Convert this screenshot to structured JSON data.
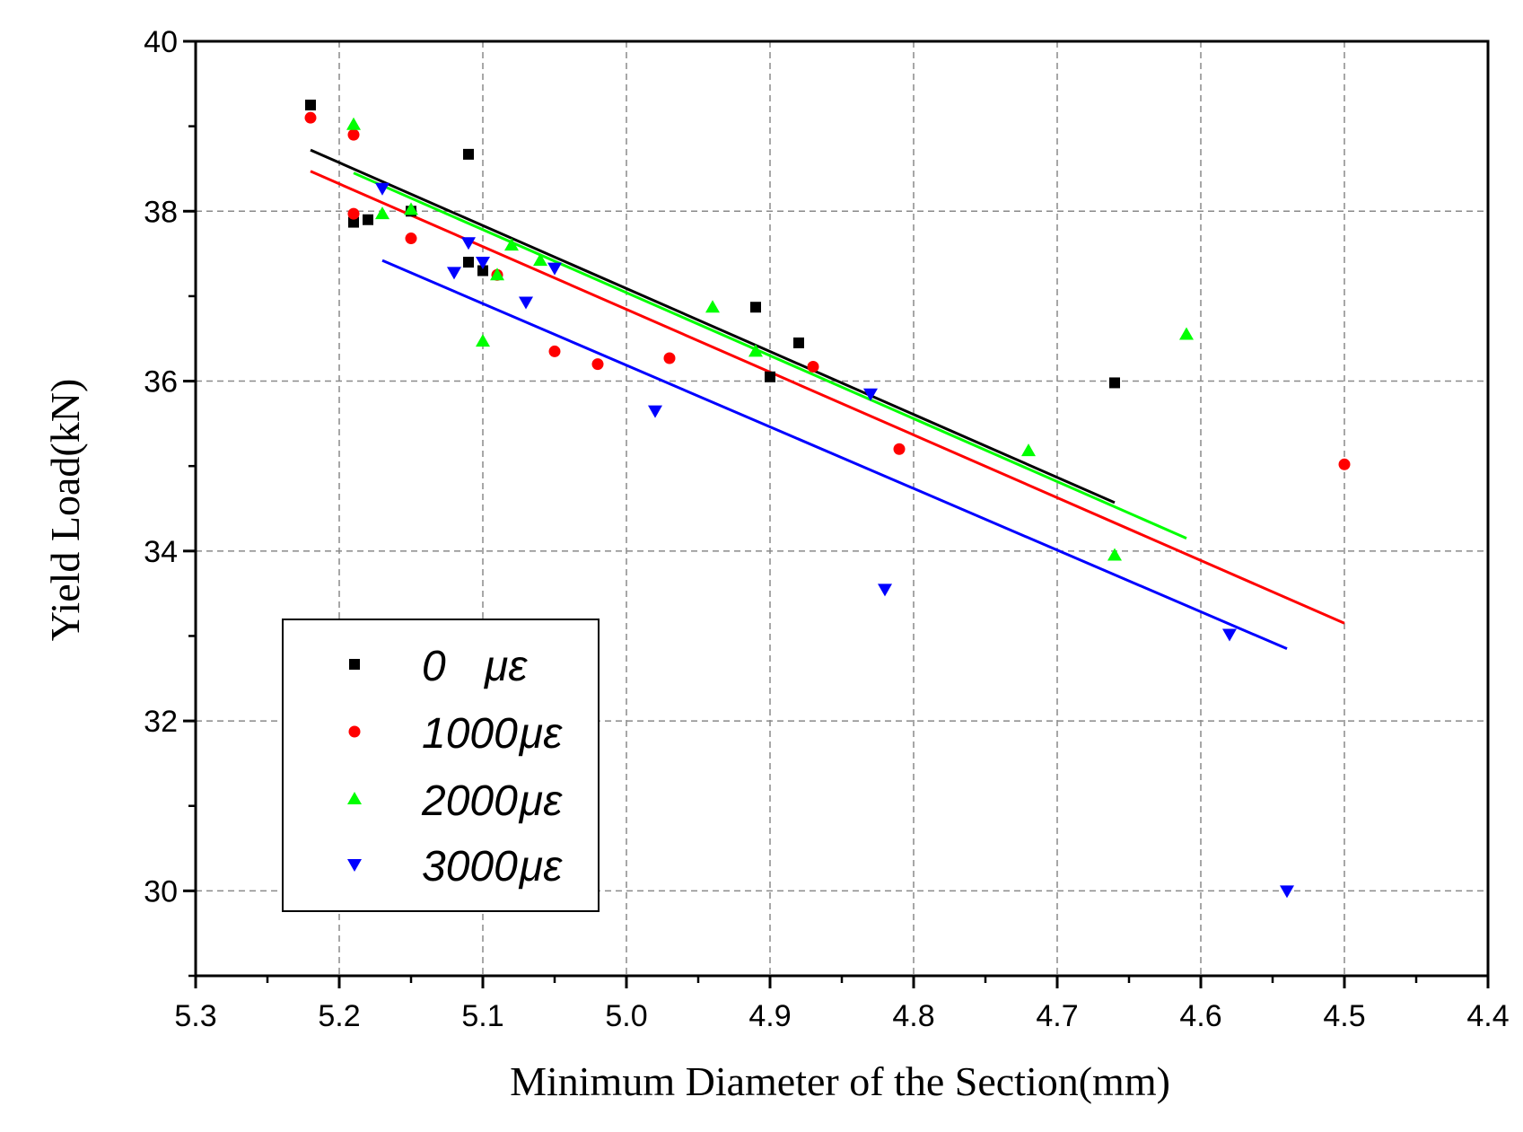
{
  "chart_data": {
    "type": "scatter",
    "title": "",
    "xlabel": "Minimum Diameter of the Section(mm)",
    "ylabel": "Yield Load(kN)",
    "xlim": [
      5.3,
      4.4
    ],
    "ylim": [
      29,
      40
    ],
    "x_reversed": true,
    "grid": true,
    "legend_position": "bottom-left",
    "x_ticks": [
      5.3,
      5.2,
      5.1,
      5.0,
      4.9,
      4.8,
      4.7,
      4.6,
      4.5,
      4.4
    ],
    "x_tick_labels": [
      "5.3",
      "5.2",
      "5.1",
      "5.0",
      "4.9",
      "4.8",
      "4.7",
      "4.6",
      "4.5",
      "4.4"
    ],
    "x_minor_ticks": [
      5.25,
      5.15,
      5.05,
      4.95,
      4.85,
      4.75,
      4.65,
      4.55,
      4.45
    ],
    "y_ticks": [
      30,
      32,
      34,
      36,
      38,
      40
    ],
    "y_tick_labels": [
      "30",
      "32",
      "34",
      "36",
      "38",
      "40"
    ],
    "y_minor_ticks": [
      29,
      31,
      33,
      35,
      37,
      39
    ],
    "series": [
      {
        "name": "0  με",
        "legend_num": "0",
        "legend_unit": "με",
        "color": "#000000",
        "marker": "square",
        "x": [
          5.22,
          5.19,
          5.18,
          5.15,
          5.11,
          5.11,
          5.1,
          4.91,
          4.9,
          4.88,
          4.66
        ],
        "y": [
          39.25,
          37.87,
          37.9,
          38.0,
          38.67,
          37.4,
          37.3,
          36.87,
          36.05,
          36.45,
          35.98
        ],
        "fit": {
          "x": [
            5.22,
            4.66
          ],
          "y": [
            38.72,
            34.57
          ]
        }
      },
      {
        "name": "1000με",
        "legend_num": "1000",
        "legend_unit": "με",
        "color": "#ff0000",
        "marker": "circle",
        "x": [
          5.22,
          5.19,
          5.19,
          5.15,
          5.09,
          5.05,
          5.02,
          4.97,
          4.87,
          4.81,
          4.5
        ],
        "y": [
          39.1,
          38.9,
          37.97,
          37.68,
          37.25,
          36.35,
          36.2,
          36.27,
          36.17,
          35.2,
          35.02
        ],
        "fit": {
          "x": [
            5.22,
            4.5
          ],
          "y": [
            38.47,
            33.15
          ]
        }
      },
      {
        "name": "2000με",
        "legend_num": "2000",
        "legend_unit": "με",
        "color": "#00ff00",
        "marker": "triangle-up",
        "x": [
          5.19,
          5.17,
          5.15,
          5.1,
          5.09,
          5.08,
          5.06,
          4.94,
          4.91,
          4.72,
          4.66,
          4.61
        ],
        "y": [
          39.02,
          37.97,
          38.02,
          36.47,
          37.25,
          37.6,
          37.42,
          36.87,
          36.35,
          35.18,
          33.95,
          36.55
        ],
        "fit": {
          "x": [
            5.19,
            4.61
          ],
          "y": [
            38.45,
            34.15
          ]
        }
      },
      {
        "name": "3000με",
        "legend_num": "3000",
        "legend_unit": "με",
        "color": "#0000ff",
        "marker": "triangle-down",
        "x": [
          5.17,
          5.12,
          5.11,
          5.1,
          5.07,
          5.05,
          4.98,
          4.83,
          4.82,
          4.58,
          4.54
        ],
        "y": [
          38.27,
          37.28,
          37.63,
          37.4,
          36.93,
          37.33,
          35.65,
          35.85,
          33.55,
          33.02,
          30.0
        ],
        "fit": {
          "x": [
            5.17,
            4.54
          ],
          "y": [
            37.42,
            32.85
          ]
        }
      }
    ]
  }
}
